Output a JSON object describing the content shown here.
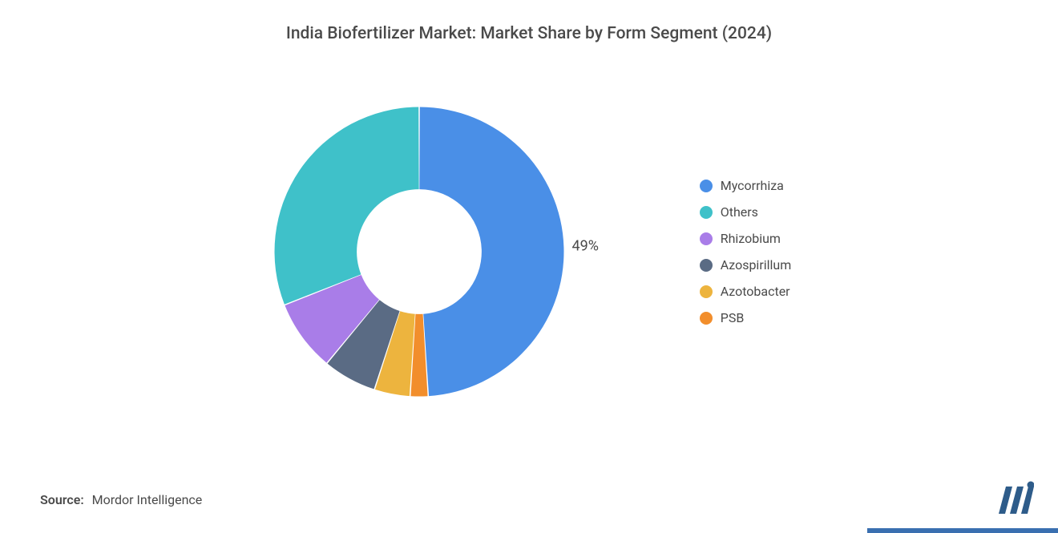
{
  "chart": {
    "type": "donut",
    "title": "India Biofertilizer Market: Market Share by Form Segment (2024)",
    "title_fontsize": 21,
    "title_color": "#4a4a4a",
    "background_color": "#ffffff",
    "donut_outer_radius": 190,
    "donut_inner_radius": 82,
    "start_angle_deg": -90,
    "slice_gap_deg": 0.5,
    "segments": [
      {
        "label": "Mycorrhiza",
        "value": 49,
        "color": "#4a8fe7",
        "show_pct": true
      },
      {
        "label": "PSB",
        "value": 2,
        "color": "#f28e2c",
        "show_pct": false
      },
      {
        "label": "Azotobacter",
        "value": 4,
        "color": "#edb43e",
        "show_pct": false
      },
      {
        "label": "Azospirillum",
        "value": 6,
        "color": "#5a6b84",
        "show_pct": false
      },
      {
        "label": "Rhizobium",
        "value": 8,
        "color": "#a97de8",
        "show_pct": false
      },
      {
        "label": "Others",
        "value": 31,
        "color": "#3fc1c9",
        "show_pct": false
      }
    ],
    "legend": {
      "fontsize": 16,
      "text_color": "#4a4a4a",
      "marker_size": 16,
      "order": [
        "Mycorrhiza",
        "Others",
        "Rhizobium",
        "Azospirillum",
        "Azotobacter",
        "PSB"
      ]
    },
    "pct_label": {
      "fontsize": 18,
      "color": "#4a4a4a",
      "radius_factor": 1.15
    }
  },
  "source": {
    "label": "Source:",
    "value": "Mordor Intelligence",
    "fontsize": 16,
    "color": "#4a4a4a"
  },
  "logo": {
    "bar_color": "#2e5c8a",
    "dot_color": "#2e5c8a"
  },
  "border_accent": {
    "color": "#3a6fb0",
    "width_pct": 18
  }
}
